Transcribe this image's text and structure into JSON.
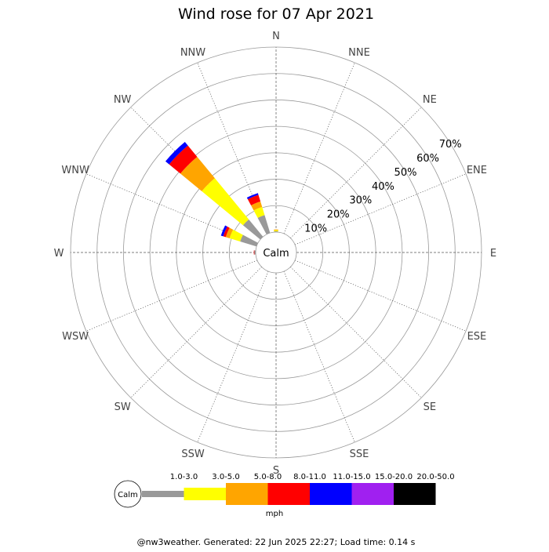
{
  "chart_data": {
    "type": "wind-rose",
    "title": "Wind rose for 07 Apr 2021",
    "directions": [
      "N",
      "NNE",
      "NE",
      "ENE",
      "E",
      "ESE",
      "SE",
      "SSE",
      "S",
      "SSW",
      "SW",
      "WSW",
      "W",
      "WNW",
      "NW",
      "NNW"
    ],
    "radial_ticks": [
      "10%",
      "20%",
      "30%",
      "40%",
      "50%",
      "60%",
      "70%"
    ],
    "radial_max": 70,
    "center_label": "Calm",
    "speed_bins": [
      {
        "label": "1.0-3.0",
        "color": "#999999"
      },
      {
        "label": "3.0-5.0",
        "color": "#ffff00"
      },
      {
        "label": "5.0-8.0",
        "color": "#ffa500"
      },
      {
        "label": "8.0-11.0",
        "color": "#ff0000"
      },
      {
        "label": "11.0-15.0",
        "color": "#0000ff"
      },
      {
        "label": "15.0-20.0",
        "color": "#a020f0"
      },
      {
        "label": "20.0-50.0",
        "color": "#000000"
      }
    ],
    "series": [
      {
        "direction": "N",
        "values": [
          0.3,
          0.4,
          0.3,
          0,
          0,
          0,
          0
        ]
      },
      {
        "direction": "W",
        "values": [
          0.5,
          0,
          0,
          0.2,
          0,
          0,
          0
        ]
      },
      {
        "direction": "WNW",
        "values": [
          6.5,
          4.2,
          1.5,
          1.0,
          0.9,
          0,
          0
        ]
      },
      {
        "direction": "NW",
        "values": [
          8.5,
          20.2,
          10.5,
          5.5,
          1.8,
          0,
          0
        ]
      },
      {
        "direction": "NNW",
        "values": [
          7.1,
          3.2,
          2.2,
          2.6,
          0.7,
          0,
          0
        ]
      }
    ],
    "legend_unit": "mph"
  },
  "footer": "@nw3weather. Generated: 22 Jun 2025 22:27; Load time: 0.14 s"
}
